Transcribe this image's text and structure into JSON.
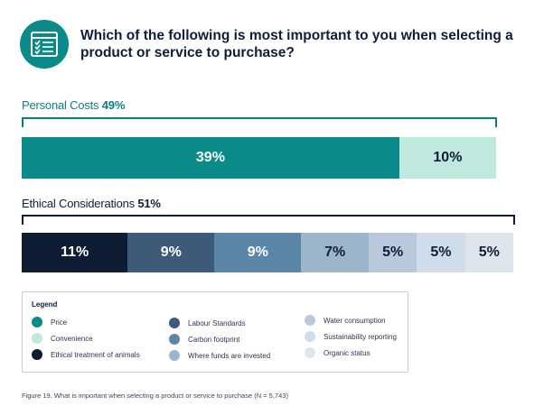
{
  "header": {
    "icon": "checklist-icon",
    "title": "Which of the following is most important to you when selecting a product or service to purchase?"
  },
  "colors": {
    "price": "#0b8a8a",
    "convenience": "#bfe8df",
    "ethical_treatment_of_animals": "#0d1b33",
    "labour_standards": "#3d5a78",
    "carbon_footprint": "#5b86a8",
    "where_funds_are_invested": "#9bb5cb",
    "water_consumption": "#b9c9db",
    "sustainability_reporting": "#cfdcea",
    "organic_status": "#dfe5ed"
  },
  "chart_data": {
    "type": "bar",
    "orientation": "horizontal-stacked",
    "groups": [
      {
        "name": "Personal Costs",
        "total_label": "49%",
        "total": 49,
        "segments": [
          {
            "name": "Price",
            "value": 39,
            "label": "39%"
          },
          {
            "name": "Convenience",
            "value": 10,
            "label": "10%"
          }
        ]
      },
      {
        "name": "Ethical Considerations",
        "total_label": "51%",
        "total": 51,
        "segments": [
          {
            "name": "Ethical treatment of animals",
            "value": 11,
            "label": "11%"
          },
          {
            "name": "Labour Standards",
            "value": 9,
            "label": "9%"
          },
          {
            "name": "Carbon footprint",
            "value": 9,
            "label": "9%"
          },
          {
            "name": "Where funds are invested",
            "value": 7,
            "label": "7%"
          },
          {
            "name": "Water consumption",
            "value": 5,
            "label": "5%"
          },
          {
            "name": "Sustainability reporting",
            "value": 5,
            "label": "5%"
          },
          {
            "name": "Organic status",
            "value": 5,
            "label": "5%"
          }
        ]
      }
    ],
    "legend": {
      "title": "Legend",
      "items": [
        "Price",
        "Convenience",
        "Ethical treatment of animals",
        "Labour Standards",
        "Carbon footprint",
        "Where funds are invested",
        "Water consumption",
        "Sustainability reporting",
        "Organic status"
      ]
    }
  },
  "caption": "Figure 19. What is important when selecting a product or service to purchase (N = 5,743)"
}
